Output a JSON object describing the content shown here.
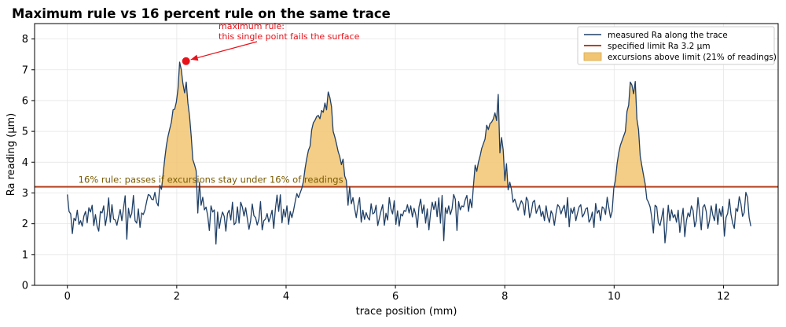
{
  "chart_data": {
    "type": "line",
    "title": "Maximum rule vs 16 percent rule on the same trace",
    "xlabel": "trace position (mm)",
    "ylabel": "Ra reading (µm)",
    "xlim": [
      -0.6,
      13.0
    ],
    "ylim": [
      0,
      8.5
    ],
    "xticks": [
      0,
      2,
      4,
      6,
      8,
      10,
      12
    ],
    "yticks": [
      0,
      1,
      2,
      3,
      4,
      5,
      6,
      7,
      8
    ],
    "grid": true,
    "legend_position": "top-right",
    "limit": 3.2,
    "series": [
      {
        "name": "measured Ra along the trace",
        "color": "#1f3f66",
        "x_start": 0,
        "x_end": 12.5,
        "values": [
          2.95,
          2.4,
          2.32,
          1.68,
          2.18,
          2.1,
          2.44,
          1.98,
          2.1,
          1.92,
          2.25,
          2.4,
          2.03,
          2.52,
          2.38,
          2.6,
          1.94,
          2.3,
          1.92,
          1.76,
          2.4,
          2.35,
          2.58,
          1.94,
          2.26,
          2.84,
          2.05,
          2.62,
          2.15,
          2.12,
          1.95,
          2.22,
          2.46,
          2.1,
          2.5,
          2.91,
          1.5,
          2.5,
          2.19,
          2.34,
          2.92,
          2.1,
          2.02,
          2.48,
          1.88,
          2.35,
          2.3,
          2.45,
          2.72,
          2.95,
          2.92,
          2.8,
          2.78,
          3.02,
          2.7,
          2.58,
          3.25,
          3.12,
          3.62,
          4.12,
          4.55,
          4.85,
          5.08,
          5.3,
          5.7,
          5.72,
          5.95,
          6.38,
          7.25,
          7.0,
          6.55,
          6.25,
          6.6,
          5.92,
          5.5,
          4.85,
          4.08,
          3.92,
          3.72,
          2.35,
          3.35,
          2.6,
          2.86,
          2.45,
          2.54,
          2.27,
          1.78,
          2.58,
          2.38,
          2.45,
          1.34,
          2.38,
          1.85,
          2.18,
          2.38,
          2.24,
          1.76,
          2.33,
          2.44,
          2.12,
          2.7,
          1.97,
          2.03,
          2.55,
          2.02,
          2.7,
          2.54,
          2.25,
          2.52,
          2.17,
          1.82,
          2.1,
          2.64,
          2.26,
          2.2,
          1.96,
          2.15,
          2.72,
          1.8,
          2.1,
          2.15,
          2.33,
          2.06,
          2.22,
          2.44,
          1.85,
          2.48,
          2.93,
          2.4,
          2.94,
          2.03,
          2.47,
          2.22,
          2.58,
          1.98,
          2.4,
          2.2,
          2.43,
          2.72,
          2.98,
          2.85,
          3.0,
          3.15,
          3.38,
          3.8,
          4.12,
          4.38,
          4.52,
          5.05,
          5.28,
          5.36,
          5.48,
          5.52,
          5.41,
          5.68,
          5.62,
          5.92,
          5.7,
          6.28,
          6.1,
          5.8,
          5.0,
          4.82,
          4.6,
          4.35,
          4.18,
          3.92,
          4.1,
          3.55,
          3.4,
          2.6,
          3.2,
          2.65,
          2.85,
          2.5,
          2.2,
          2.58,
          2.85,
          2.05,
          2.44,
          2.14,
          2.36,
          2.2,
          2.12,
          2.65,
          2.32,
          2.36,
          2.6,
          1.94,
          2.18,
          2.42,
          2.62,
          1.95,
          2.34,
          2.12,
          2.85,
          2.48,
          2.32,
          2.75,
          1.98,
          2.42,
          1.92,
          2.32,
          2.25,
          2.43,
          2.4,
          2.62,
          2.35,
          2.58,
          2.22,
          2.5,
          2.3,
          1.88,
          2.55,
          2.8,
          2.34,
          2.61,
          2.02,
          2.48,
          1.8,
          2.35,
          2.7,
          2.46,
          2.72,
          2.23,
          2.84,
          2.02,
          2.92,
          1.45,
          2.52,
          2.33,
          2.58,
          2.3,
          2.48,
          2.95,
          2.8,
          1.78,
          2.72,
          2.45,
          2.58,
          2.55,
          2.78,
          2.92,
          2.4,
          2.8,
          2.52,
          3.25,
          3.9,
          3.7,
          4.0,
          4.2,
          4.45,
          4.6,
          4.75,
          5.2,
          5.06,
          5.25,
          5.3,
          5.4,
          5.6,
          5.35,
          6.2,
          4.3,
          4.8,
          4.4,
          3.4,
          3.95,
          3.1,
          3.35,
          3.12,
          2.7,
          2.8,
          2.62,
          2.44,
          2.6,
          2.75,
          2.64,
          2.28,
          2.86,
          2.75,
          2.2,
          2.38,
          2.7,
          2.76,
          2.34,
          2.48,
          2.6,
          2.24,
          2.4,
          2.1,
          2.58,
          2.22,
          2.04,
          2.42,
          2.3,
          1.95,
          2.34,
          2.62,
          2.55,
          2.32,
          2.48,
          2.6,
          2.2,
          2.85,
          1.9,
          2.5,
          2.34,
          2.54,
          2.1,
          2.34,
          2.55,
          2.62,
          2.22,
          2.32,
          2.48,
          2.52,
          2.05,
          2.15,
          2.38,
          1.88,
          2.66,
          2.34,
          2.44,
          2.1,
          2.55,
          2.5,
          2.3,
          2.86,
          2.52,
          2.2,
          2.4,
          3.15,
          3.42,
          3.95,
          4.3,
          4.55,
          4.7,
          4.85,
          5.0,
          5.65,
          5.85,
          6.6,
          6.5,
          6.22,
          6.62,
          5.4,
          5.05,
          4.2,
          3.88,
          3.58,
          3.3,
          2.8,
          2.7,
          2.55,
          2.2,
          1.7,
          2.6,
          2.55,
          2.04,
          1.94,
          2.2,
          2.5,
          1.38,
          1.9,
          2.6,
          2.1,
          2.45,
          2.2,
          2.3,
          2.05,
          2.44,
          1.72,
          2.14,
          2.5,
          1.58,
          2.1,
          2.35,
          2.23,
          2.58,
          2.44,
          1.9,
          2.1,
          2.85,
          2.34,
          1.8,
          2.54,
          2.62,
          2.4,
          1.85,
          2.12,
          2.58,
          2.28,
          2.1,
          2.64,
          1.98,
          2.48,
          2.24,
          2.56,
          1.6,
          2.2,
          2.34,
          2.8,
          2.3,
          2.02,
          1.85,
          2.5,
          2.4,
          2.88,
          2.65,
          2.24,
          2.36,
          3.02,
          2.86,
          2.2,
          1.92
        ]
      }
    ],
    "legend": [
      "measured Ra along the trace",
      "specified limit Ra 3.2 µm",
      "excursions above limit (21% of readings)"
    ],
    "annotations": {
      "max_rule": [
        "maximum rule:",
        "this single point fails the surface"
      ],
      "rule16": "16% rule: passes if excursions stay under 16% of readings"
    },
    "max_point": {
      "x": 2.17,
      "y": 7.28
    },
    "colors": {
      "trace": "#1f3f66",
      "limit": "#b5441f",
      "fill": "#f2c572",
      "highlight": "#e8121a",
      "rule16_text": "#7a5a00",
      "grid": "#e6e6e6"
    }
  }
}
